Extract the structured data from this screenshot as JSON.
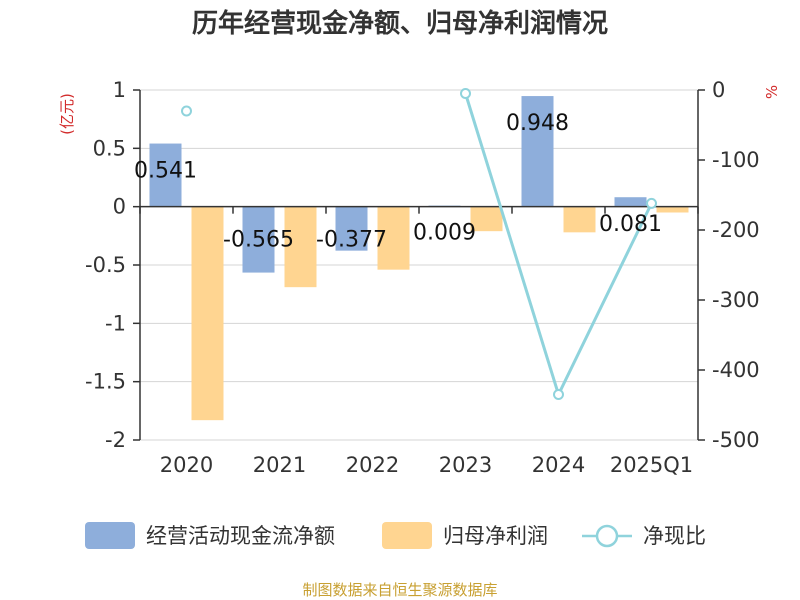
{
  "title": "历年经营现金净额、归母净利润情况",
  "source": "制图数据来自恒生聚源数据库",
  "chart_data": {
    "type": "bar",
    "categories": [
      "2020",
      "2021",
      "2022",
      "2023",
      "2024",
      "2025Q1"
    ],
    "series": [
      {
        "name": "经营活动现金流净额",
        "type": "bar",
        "axis": "left",
        "color": "#8eaedb",
        "values": [
          0.541,
          -0.565,
          -0.377,
          0.009,
          0.948,
          0.081
        ],
        "labels_shown": true
      },
      {
        "name": "归母净利润",
        "type": "bar",
        "axis": "left",
        "color": "#ffd591",
        "values": [
          -1.83,
          -0.69,
          -0.54,
          -0.21,
          -0.22,
          -0.05
        ],
        "labels_shown": false
      },
      {
        "name": "净现比",
        "type": "line",
        "axis": "right",
        "color": "#8fd3dc",
        "values": [
          -30,
          null,
          null,
          -5,
          -435,
          -162
        ]
      }
    ],
    "y_left": {
      "label": "(亿元)",
      "range": [
        -2,
        1
      ],
      "ticks": [
        1,
        0.5,
        0,
        -0.5,
        -1,
        -1.5,
        -2
      ],
      "tick_labels": [
        "1",
        "0.5",
        "0",
        "-0.5",
        "-1",
        "-1.5",
        "-2"
      ]
    },
    "y_right": {
      "label": "%",
      "range": [
        -500,
        0
      ],
      "ticks": [
        0,
        -100,
        -200,
        -300,
        -400,
        -500
      ],
      "tick_labels": [
        "0",
        "-100",
        "-200",
        "-300",
        "-400",
        "-500"
      ]
    },
    "data_labels": [
      "0.541",
      "-0.565",
      "-0.377",
      "0.009",
      "0.948",
      "0.081"
    ],
    "grid": true,
    "legend_position": "bottom"
  }
}
